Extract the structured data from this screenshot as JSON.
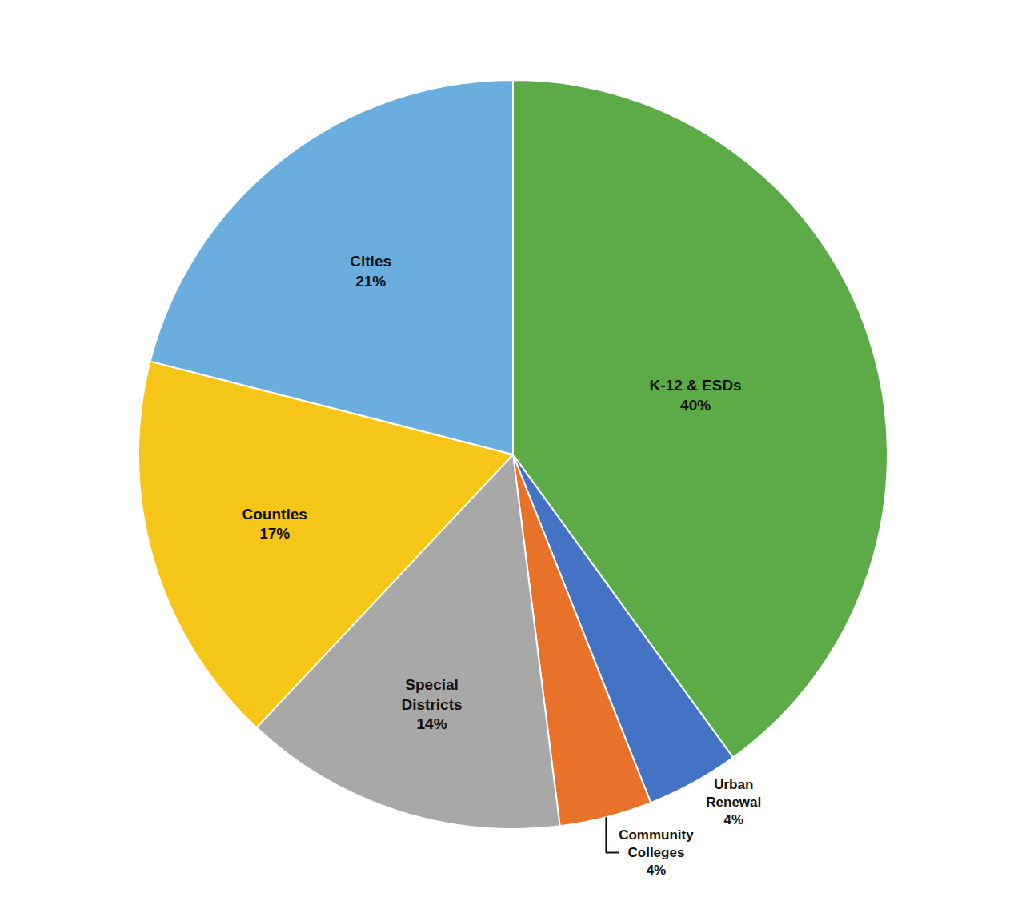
{
  "chart_data": {
    "type": "pie",
    "categories": [
      "K-12 & ESDs",
      "Urban\nRenewal",
      "Community\nColleges",
      "Special\nDistricts",
      "Counties",
      "Cities"
    ],
    "values": [
      40,
      4,
      4,
      14,
      17,
      21
    ],
    "value_labels": [
      "40%",
      "4%",
      "4%",
      "14%",
      "17%",
      "21%"
    ],
    "colors": [
      "#5dab47",
      "#4472c4",
      "#e8722a",
      "#a8a8a8",
      "#f5c518",
      "#6aaee0"
    ],
    "data_labels": true,
    "legend": false
  }
}
